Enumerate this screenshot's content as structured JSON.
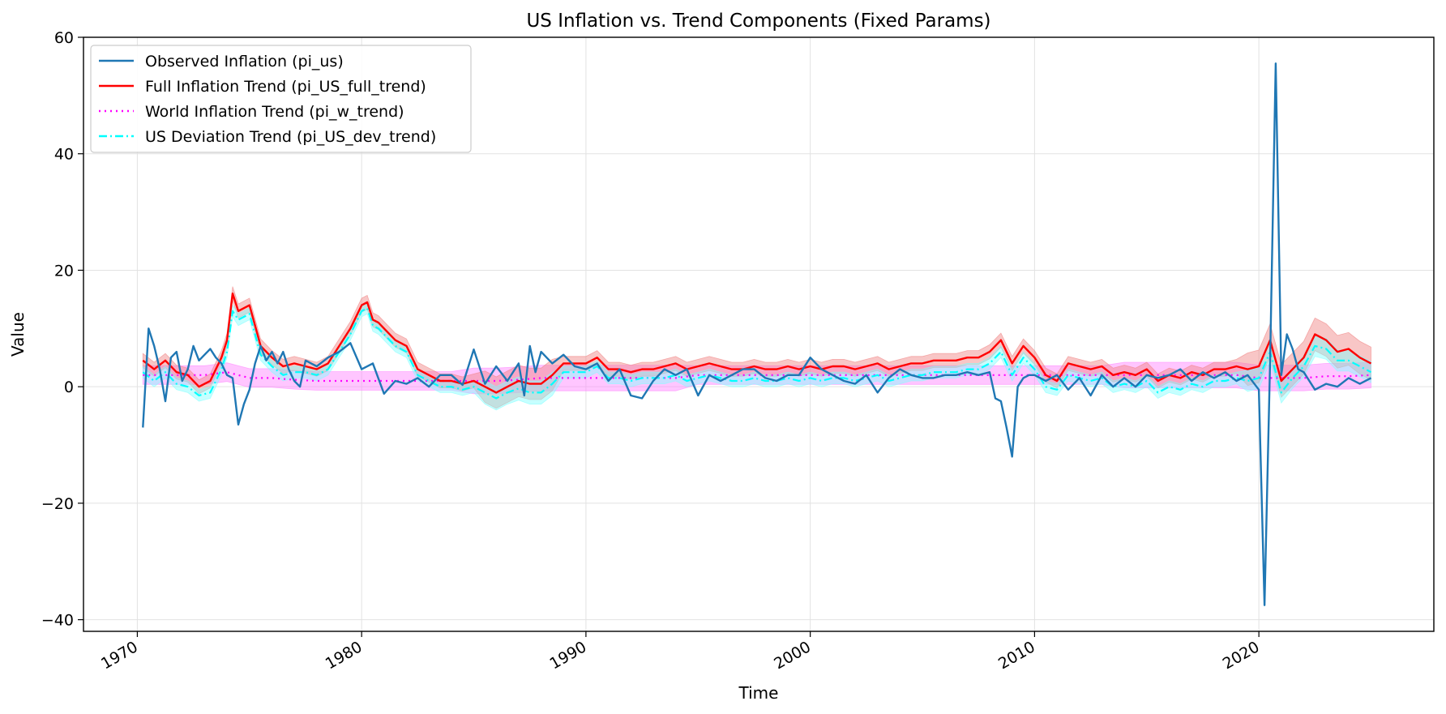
{
  "chart_data": {
    "type": "line",
    "title": "US Inflation vs. Trend Components (Fixed Params)",
    "xlabel": "Time",
    "ylabel": "Value",
    "xlim": [
      1967.6,
      2027.8
    ],
    "ylim": [
      -42,
      60
    ],
    "xticks": [
      1970,
      1980,
      1990,
      2000,
      2010,
      2020
    ],
    "xtick_labels": [
      "1970",
      "1980",
      "1990",
      "2000",
      "2010",
      "2020"
    ],
    "yticks": [
      -40,
      -20,
      0,
      20,
      40,
      60
    ],
    "ytick_labels": [
      "−40",
      "−20",
      "0",
      "20",
      "40",
      "60"
    ],
    "grid": true,
    "legend_position": "top-left",
    "series": [
      {
        "name": "Observed Inflation (pi_us)",
        "color": "#1f77b4",
        "style": "solid",
        "x": [
          1970.25,
          1970.5,
          1970.75,
          1971.0,
          1971.25,
          1971.5,
          1971.75,
          1972.0,
          1972.25,
          1972.5,
          1972.75,
          1973.0,
          1973.25,
          1973.5,
          1973.75,
          1974.0,
          1974.25,
          1974.5,
          1974.75,
          1975.0,
          1975.25,
          1975.5,
          1975.75,
          1976.0,
          1976.25,
          1976.5,
          1976.75,
          1977.0,
          1977.25,
          1977.5,
          1977.75,
          1978.0,
          1978.5,
          1979.0,
          1979.5,
          1980.0,
          1980.5,
          1981.0,
          1981.5,
          1982.0,
          1982.5,
          1983.0,
          1983.5,
          1984.0,
          1984.5,
          1985.0,
          1985.5,
          1986.0,
          1986.5,
          1987.0,
          1987.25,
          1987.5,
          1987.75,
          1988.0,
          1988.5,
          1989.0,
          1989.5,
          1990.0,
          1990.5,
          1991.0,
          1991.5,
          1992.0,
          1992.5,
          1993.0,
          1993.5,
          1994.0,
          1994.5,
          1995.0,
          1995.5,
          1996.0,
          1996.5,
          1997.0,
          1997.5,
          1998.0,
          1998.5,
          1999.0,
          1999.5,
          2000.0,
          2000.5,
          2001.0,
          2001.5,
          2002.0,
          2002.5,
          2003.0,
          2003.5,
          2004.0,
          2004.5,
          2005.0,
          2005.5,
          2006.0,
          2006.5,
          2007.0,
          2007.5,
          2008.0,
          2008.25,
          2008.5,
          2008.75,
          2009.0,
          2009.25,
          2009.5,
          2009.75,
          2010.0,
          2010.5,
          2011.0,
          2011.5,
          2012.0,
          2012.5,
          2013.0,
          2013.5,
          2014.0,
          2014.5,
          2015.0,
          2015.5,
          2016.0,
          2016.5,
          2017.0,
          2017.5,
          2018.0,
          2018.5,
          2019.0,
          2019.5,
          2020.0,
          2020.25,
          2020.5,
          2020.75,
          2021.0,
          2021.25,
          2021.5,
          2021.75,
          2022.0,
          2022.5,
          2023.0,
          2023.5,
          2024.0,
          2024.5,
          2025.0
        ],
        "y": [
          -7,
          10,
          7,
          3,
          -2.5,
          5,
          6,
          1,
          3,
          7,
          4.5,
          5.5,
          6.5,
          5,
          4,
          2,
          1.5,
          -6.5,
          -3,
          -0.5,
          4,
          7,
          4.5,
          6,
          4,
          6,
          3,
          1,
          0,
          4.5,
          4,
          3.5,
          5,
          6,
          7.5,
          3,
          4,
          -1.2,
          1,
          0.5,
          1.5,
          0,
          2,
          2,
          0.3,
          6.4,
          0.5,
          3.5,
          1,
          4,
          -1.5,
          7,
          2.5,
          6,
          4,
          5.5,
          3.5,
          3,
          4,
          1,
          3,
          -1.5,
          -2,
          1,
          3,
          2,
          3,
          -1.5,
          2,
          1,
          2,
          3,
          3,
          1.5,
          1,
          2,
          2,
          5,
          3,
          2,
          1,
          0.5,
          2,
          -1,
          1.5,
          3,
          2,
          1.5,
          1.5,
          2,
          2,
          2.5,
          2,
          2.5,
          -2,
          -2.5,
          -7,
          -12,
          0,
          1.5,
          2,
          2,
          1,
          2,
          -0.5,
          1.5,
          -1.5,
          2,
          0,
          1.5,
          0,
          2,
          1.5,
          2,
          3,
          1,
          2.5,
          1.5,
          2.5,
          1,
          2,
          -0.5,
          -37.5,
          4.5,
          55.5,
          2,
          9,
          6.5,
          3,
          2.5,
          -0.5,
          0.5,
          0,
          1.5,
          0.5,
          1.5
        ]
      },
      {
        "name": "Full Inflation Trend (pi_US_full_trend)",
        "color": "#ff0000",
        "style": "solid",
        "band_color": "#f08080",
        "x": [
          1970.25,
          1970.75,
          1971.25,
          1971.75,
          1972.25,
          1972.75,
          1973.25,
          1973.75,
          1974.0,
          1974.25,
          1974.5,
          1975.0,
          1975.5,
          1976.0,
          1976.5,
          1977.0,
          1977.5,
          1978.0,
          1978.5,
          1979.0,
          1979.5,
          1980.0,
          1980.25,
          1980.5,
          1980.75,
          1981.0,
          1981.5,
          1982.0,
          1982.5,
          1983.0,
          1983.5,
          1984.0,
          1984.5,
          1985.0,
          1985.5,
          1986.0,
          1986.5,
          1987.0,
          1987.5,
          1988.0,
          1988.5,
          1989.0,
          1989.5,
          1990.0,
          1990.5,
          1991.0,
          1991.5,
          1992.0,
          1992.5,
          1993.0,
          1993.5,
          1994.0,
          1994.5,
          1995.0,
          1995.5,
          1996.0,
          1996.5,
          1997.0,
          1997.5,
          1998.0,
          1998.5,
          1999.0,
          1999.5,
          2000.0,
          2000.5,
          2001.0,
          2001.5,
          2002.0,
          2002.5,
          2003.0,
          2003.5,
          2004.0,
          2004.5,
          2005.0,
          2005.5,
          2006.0,
          2006.5,
          2007.0,
          2007.5,
          2008.0,
          2008.5,
          2009.0,
          2009.5,
          2010.0,
          2010.5,
          2011.0,
          2011.5,
          2012.0,
          2012.5,
          2013.0,
          2013.5,
          2014.0,
          2014.5,
          2015.0,
          2015.5,
          2016.0,
          2016.5,
          2017.0,
          2017.5,
          2018.0,
          2018.5,
          2019.0,
          2019.5,
          2020.0,
          2020.5,
          2021.0,
          2021.5,
          2022.0,
          2022.5,
          2023.0,
          2023.5,
          2024.0,
          2024.5,
          2025.0
        ],
        "y": [
          4.5,
          3,
          4.5,
          2.5,
          2,
          0,
          1,
          5,
          8,
          16,
          13,
          14,
          7,
          5,
          3.5,
          4,
          3.5,
          3,
          4,
          7,
          10,
          14,
          14.5,
          11.5,
          11,
          10,
          8,
          7,
          3,
          2,
          1,
          1,
          0.5,
          1,
          0,
          -1,
          0,
          1,
          0.5,
          0.5,
          2,
          4,
          4,
          4,
          5,
          3,
          3,
          2.5,
          3,
          3,
          3.5,
          4,
          3,
          3.5,
          4,
          3.5,
          3,
          3,
          3.5,
          3,
          3,
          3.5,
          3,
          3.5,
          3,
          3.5,
          3.5,
          3,
          3.5,
          4,
          3,
          3.5,
          4,
          4,
          4.5,
          4.5,
          4.5,
          5,
          5,
          6,
          8,
          4,
          7,
          5,
          2,
          1,
          4,
          3.5,
          3,
          3.5,
          2,
          2.5,
          2,
          3,
          1,
          2,
          1.5,
          2.5,
          2,
          3,
          3,
          3.5,
          3,
          3.5,
          8,
          1,
          3,
          5,
          9,
          8,
          6,
          6.5,
          5,
          4
        ]
      },
      {
        "name": "World Inflation Trend (pi_w_trend)",
        "color": "#ff00ff",
        "style": "dotted",
        "band_color": "#ff80ff",
        "x": [
          1970.25,
          1971.0,
          1972.0,
          1973.0,
          1974.0,
          1975.0,
          1976.0,
          1977.0,
          1978.0,
          1979.0,
          1980.0,
          1981.0,
          1982.0,
          1983.0,
          1984.0,
          1985.0,
          1986.0,
          1987.0,
          1988.0,
          1989.0,
          1990.0,
          1991.0,
          1992.0,
          1993.0,
          1994.0,
          1995.0,
          1996.0,
          1997.0,
          1998.0,
          1999.0,
          2000.0,
          2001.0,
          2002.0,
          2003.0,
          2004.0,
          2005.0,
          2006.0,
          2007.0,
          2008.0,
          2009.0,
          2010.0,
          2011.0,
          2012.0,
          2013.0,
          2014.0,
          2015.0,
          2016.0,
          2017.0,
          2018.0,
          2019.0,
          2020.0,
          2021.0,
          2022.0,
          2023.0,
          2024.0,
          2025.0
        ],
        "y": [
          2,
          2,
          2,
          2,
          2.5,
          1.5,
          1.5,
          1.2,
          1,
          1,
          1,
          1,
          1,
          1,
          1,
          1,
          1,
          1.2,
          1.5,
          1.5,
          1.5,
          1.5,
          1.5,
          1.5,
          1.5,
          2,
          2,
          2,
          2,
          2,
          2,
          2,
          2,
          2,
          2,
          2,
          2,
          2,
          2,
          2,
          2,
          2,
          2,
          2,
          2,
          2,
          2,
          2,
          2,
          2,
          1.5,
          1.5,
          1.5,
          1.8,
          1.8,
          2
        ]
      },
      {
        "name": "US Deviation Trend (pi_US_dev_trend)",
        "color": "#00ffff",
        "style": "dashdot",
        "band_color": "#80ffff",
        "x": [
          1970.25,
          1970.75,
          1971.25,
          1971.75,
          1972.25,
          1972.75,
          1973.25,
          1973.75,
          1974.0,
          1974.25,
          1974.5,
          1975.0,
          1975.5,
          1976.0,
          1976.5,
          1977.0,
          1977.5,
          1978.0,
          1978.5,
          1979.0,
          1979.5,
          1980.0,
          1980.25,
          1980.5,
          1980.75,
          1981.0,
          1981.5,
          1982.0,
          1982.5,
          1983.0,
          1983.5,
          1984.0,
          1984.5,
          1985.0,
          1985.5,
          1986.0,
          1986.5,
          1987.0,
          1987.5,
          1988.0,
          1988.5,
          1989.0,
          1989.5,
          1990.0,
          1990.5,
          1991.0,
          1991.5,
          1992.0,
          1992.5,
          1993.0,
          1993.5,
          1994.0,
          1994.5,
          1995.0,
          1995.5,
          1996.0,
          1996.5,
          1997.0,
          1997.5,
          1998.0,
          1998.5,
          1999.0,
          1999.5,
          2000.0,
          2000.5,
          2001.0,
          2001.5,
          2002.0,
          2002.5,
          2003.0,
          2003.5,
          2004.0,
          2004.5,
          2005.0,
          2005.5,
          2006.0,
          2006.5,
          2007.0,
          2007.5,
          2008.0,
          2008.5,
          2009.0,
          2009.5,
          2010.0,
          2010.5,
          2011.0,
          2011.5,
          2012.0,
          2012.5,
          2013.0,
          2013.5,
          2014.0,
          2014.5,
          2015.0,
          2015.5,
          2016.0,
          2016.5,
          2017.0,
          2017.5,
          2018.0,
          2018.5,
          2019.0,
          2019.5,
          2020.0,
          2020.5,
          2021.0,
          2021.5,
          2022.0,
          2022.5,
          2023.0,
          2023.5,
          2024.0,
          2024.5,
          2025.0
        ],
        "y": [
          2.5,
          1,
          2.5,
          0.5,
          0,
          -1.5,
          -1,
          3,
          6,
          13,
          11.5,
          12.5,
          5.5,
          3.5,
          2,
          2.5,
          2.5,
          2,
          3,
          6,
          9,
          13,
          13.5,
          10.5,
          10,
          9,
          7,
          6,
          2,
          1,
          0,
          0,
          -0.5,
          0,
          -1,
          -2,
          -1,
          -0.3,
          -1,
          -1,
          0.5,
          2.5,
          2.5,
          2.5,
          3.5,
          1.5,
          1.5,
          1,
          1.5,
          1.5,
          1.5,
          2,
          1,
          1.5,
          2,
          1.5,
          1,
          1,
          1.5,
          1,
          1,
          1.5,
          1,
          1.5,
          1,
          1.5,
          1.5,
          1,
          1.5,
          2,
          1,
          1.5,
          2,
          2,
          2.5,
          2.5,
          2.5,
          3,
          3,
          4,
          6,
          2,
          5,
          3,
          0,
          -0.5,
          2,
          1.5,
          1,
          1.5,
          0,
          0.5,
          0,
          1,
          -1,
          0,
          -0.5,
          0.5,
          0,
          1,
          1,
          1.5,
          1,
          1.5,
          6,
          -1,
          1.5,
          3.5,
          7,
          6.5,
          4.5,
          4.5,
          3.5,
          2.5
        ]
      }
    ]
  }
}
